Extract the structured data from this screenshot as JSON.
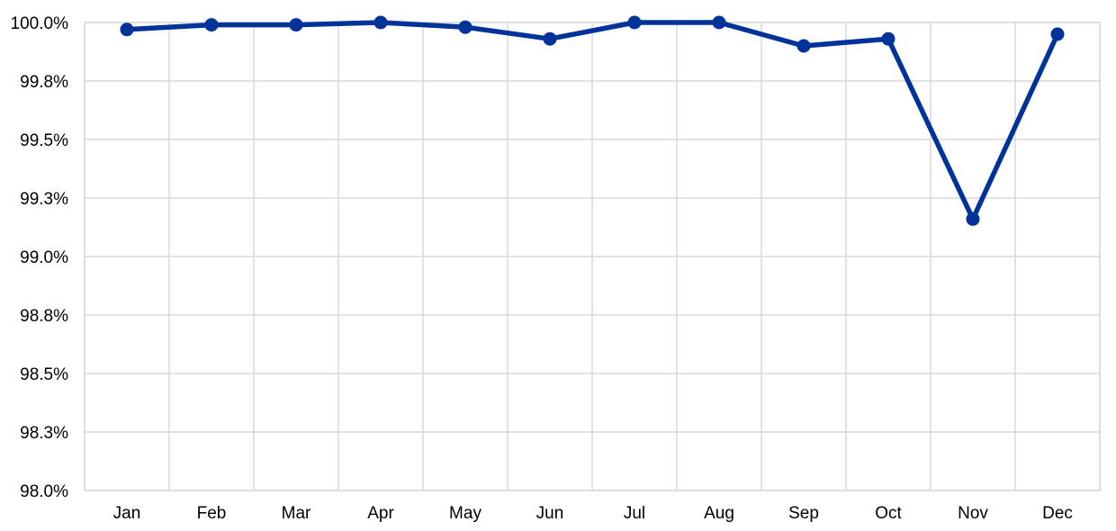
{
  "chart_data": {
    "type": "line",
    "title": "",
    "xlabel": "",
    "ylabel": "",
    "categories": [
      "Jan",
      "Feb",
      "Mar",
      "Apr",
      "May",
      "Jun",
      "Jul",
      "Aug",
      "Sep",
      "Oct",
      "Nov",
      "Dec"
    ],
    "series": [
      {
        "color": "#003399",
        "marker": "circle",
        "values": [
          99.97,
          99.99,
          99.99,
          100.0,
          99.98,
          99.93,
          100.0,
          100.0,
          99.9,
          99.93,
          99.16,
          99.95
        ]
      }
    ],
    "ylim": [
      98.0,
      100.0
    ],
    "yticks": [
      98.0,
      98.25,
      98.5,
      98.75,
      99.0,
      99.25,
      99.5,
      99.75,
      100.0
    ],
    "ytick_labels": [
      "98.0%",
      "98.3%",
      "98.5%",
      "98.8%",
      "99.0%",
      "99.3%",
      "99.5%",
      "99.8%",
      "100.0%"
    ],
    "grid": true,
    "legend": "none"
  }
}
